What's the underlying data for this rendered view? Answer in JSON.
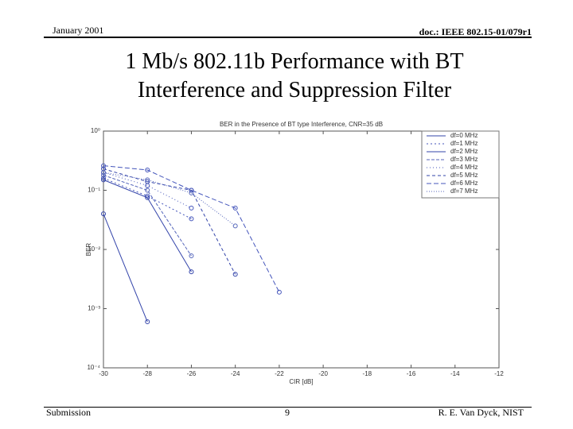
{
  "header": {
    "date": "January 2001",
    "doc": "doc.: IEEE 802.15-01/079r1"
  },
  "slide_title": [
    "1 Mb/s 802.11b Performance with BT",
    "Interference and Suppression Filter"
  ],
  "footer": {
    "left": "Submission",
    "page": "9",
    "author": "R. E. Van Dyck, NIST"
  },
  "chart_data": {
    "type": "line",
    "title": "BER in the Presence of BT type Interference, CNR=35 dB",
    "x_label": "CIR [dB]",
    "y_label": "BER",
    "log_y": true,
    "legend": "upper right",
    "xlim": [
      -30,
      -12
    ],
    "xticks": [
      -30,
      -28,
      -26,
      -24,
      -22,
      -20,
      -18,
      -16,
      -14,
      -12
    ],
    "ylim": [
      0.0001,
      1
    ],
    "yticks": [
      {
        "value": 1,
        "label": "10⁰"
      },
      {
        "value": 0.1,
        "label": "10⁻¹"
      },
      {
        "value": 0.01,
        "label": "10⁻²"
      },
      {
        "value": 0.001,
        "label": "10⁻³"
      },
      {
        "value": 0.0001,
        "label": "10⁻⁴"
      }
    ],
    "series": [
      {
        "name": "df=0 MHz",
        "color": "#3344aa",
        "dash": "none",
        "x": [
          -30,
          -28
        ],
        "values": [
          0.04,
          0.0006
        ]
      },
      {
        "name": "df=1 MHz",
        "color": "#4455bb",
        "dash": "2,3",
        "x": [
          -30,
          -28,
          -26
        ],
        "values": [
          0.16,
          0.08,
          0.033
        ]
      },
      {
        "name": "df=2 MHz",
        "color": "#3344aa",
        "dash": "none",
        "x": [
          -30,
          -28,
          -26
        ],
        "values": [
          0.15,
          0.075,
          0.0042
        ]
      },
      {
        "name": "df=3 MHz",
        "color": "#5566bb",
        "dash": "4,2",
        "x": [
          -30,
          -28,
          -26
        ],
        "values": [
          0.18,
          0.1,
          0.0078
        ]
      },
      {
        "name": "df=4 MHz",
        "color": "#4455bb",
        "dash": "1,3",
        "x": [
          -30,
          -28,
          -26
        ],
        "values": [
          0.2,
          0.12,
          0.05
        ]
      },
      {
        "name": "df=5 MHz",
        "color": "#3344aa",
        "dash": "4,3",
        "x": [
          -30,
          -28,
          -26,
          -24
        ],
        "values": [
          0.23,
          0.14,
          0.1,
          0.0038
        ]
      },
      {
        "name": "df=6 MHz",
        "color": "#4455bb",
        "dash": "6,3",
        "x": [
          -30,
          -28,
          -26,
          -24,
          -22
        ],
        "values": [
          0.26,
          0.22,
          0.1,
          0.05,
          0.0019
        ]
      },
      {
        "name": "df=7 MHz",
        "color": "#5566bb",
        "dash": "1,2",
        "x": [
          -30,
          -28,
          -26,
          -24
        ],
        "values": [
          0.2,
          0.15,
          0.09,
          0.025
        ]
      }
    ]
  }
}
